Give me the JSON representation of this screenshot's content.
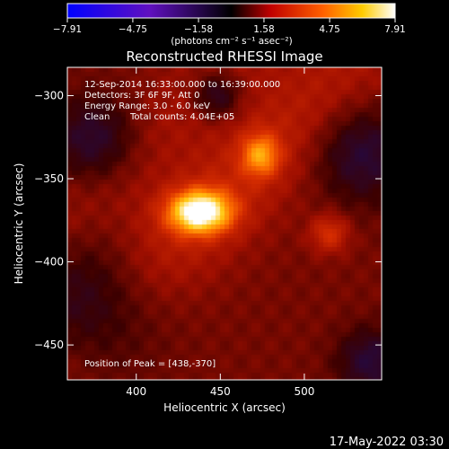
{
  "chart_data": {
    "type": "heatmap",
    "title": "Reconstructed RHESSI Image",
    "xlabel": "Heliocentric X (arcsec)",
    "ylabel": "Heliocentric Y (arcsec)",
    "xlim": [
      359,
      546
    ],
    "ylim": [
      -471,
      -283
    ],
    "x_ticks": [
      400,
      450,
      500
    ],
    "y_ticks": [
      -300,
      -350,
      -400,
      -450
    ],
    "colorbar": {
      "ticks": [
        -7.91,
        -4.75,
        -1.58,
        1.58,
        4.75,
        7.91
      ],
      "unit_label": "(photons cm⁻² s⁻¹ asec⁻²)",
      "colormap": "black-body (blue-purple-black-red-orange-yellow-white)"
    },
    "annotations": {
      "time_range": "12-Sep-2014 16:33:00.000 to 16:39:00.000",
      "detectors": "Detectors: 3F 6F 9F, Att 0",
      "energy_range": "Energy Range: 3.0 - 6.0 keV",
      "clean_label": "Clean",
      "total_counts": "Total counts: 4.04E+05",
      "peak_position": "Position of Peak = [438,-370]"
    },
    "peak": {
      "x": 438,
      "y": -370,
      "value": 7.91
    },
    "sources": [
      {
        "x": 438,
        "y": -370,
        "value": 7.9,
        "sx": 13,
        "sy": 9
      },
      {
        "x": 474,
        "y": -336,
        "value": 4.5,
        "sx": 8,
        "sy": 9
      },
      {
        "x": 515,
        "y": -383,
        "value": 3.2,
        "sx": 8,
        "sy": 8
      }
    ],
    "grid": false,
    "timestamp": "17-May-2022 03:30"
  }
}
